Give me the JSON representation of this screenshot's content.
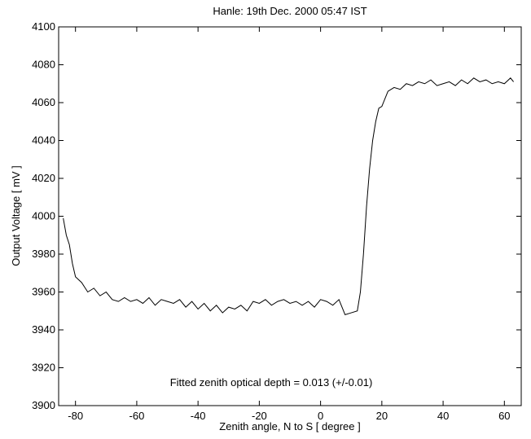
{
  "chart_data": {
    "type": "line",
    "title": "Hanle: 19th Dec. 2000 05:47 IST",
    "xlabel": "Zenith angle,  N to S [ degree ]",
    "ylabel": "Output Voltage [ mV ]",
    "annotation": "Fitted zenith optical depth = 0.013 (+/-0.01)",
    "x": [
      -84,
      -83,
      -82,
      -81,
      -80,
      -78,
      -76,
      -74,
      -72,
      -70,
      -68,
      -66,
      -64,
      -62,
      -60,
      -58,
      -56,
      -54,
      -52,
      -50,
      -48,
      -46,
      -44,
      -42,
      -40,
      -38,
      -36,
      -34,
      -32,
      -30,
      -28,
      -26,
      -24,
      -22,
      -20,
      -18,
      -16,
      -14,
      -12,
      -10,
      -8,
      -6,
      -4,
      -2,
      0,
      2,
      4,
      6,
      8,
      10,
      12,
      13,
      14,
      15,
      16,
      17,
      18,
      19,
      20,
      22,
      24,
      26,
      28,
      30,
      32,
      34,
      36,
      38,
      40,
      42,
      44,
      46,
      48,
      50,
      52,
      54,
      56,
      58,
      60,
      62,
      63
    ],
    "series": [
      {
        "name": "Output Voltage",
        "color": "#000000",
        "values": [
          3999,
          3990,
          3985,
          3975,
          3968,
          3965,
          3960,
          3962,
          3958,
          3960,
          3956,
          3955,
          3957,
          3955,
          3956,
          3954,
          3957,
          3953,
          3956,
          3955,
          3954,
          3956,
          3952,
          3955,
          3951,
          3954,
          3950,
          3953,
          3949,
          3952,
          3951,
          3953,
          3950,
          3955,
          3954,
          3956,
          3953,
          3955,
          3956,
          3954,
          3955,
          3953,
          3955,
          3952,
          3956,
          3955,
          3953,
          3956,
          3948,
          3949,
          3950,
          3960,
          3980,
          4005,
          4025,
          4040,
          4050,
          4057,
          4058,
          4066,
          4068,
          4067,
          4070,
          4069,
          4071,
          4070,
          4072,
          4069,
          4070,
          4071,
          4069,
          4072,
          4070,
          4073,
          4071,
          4072,
          4070,
          4071,
          4070,
          4073,
          4071
        ]
      }
    ],
    "xlim": [
      -85.5,
      65.5
    ],
    "ylim": [
      3900,
      4100
    ],
    "xticks": [
      -80,
      -60,
      -40,
      -20,
      0,
      20,
      40,
      60
    ],
    "yticks": [
      3900,
      3920,
      3940,
      3960,
      3980,
      4000,
      4020,
      4040,
      4060,
      4080,
      4100
    ],
    "grid": false
  }
}
